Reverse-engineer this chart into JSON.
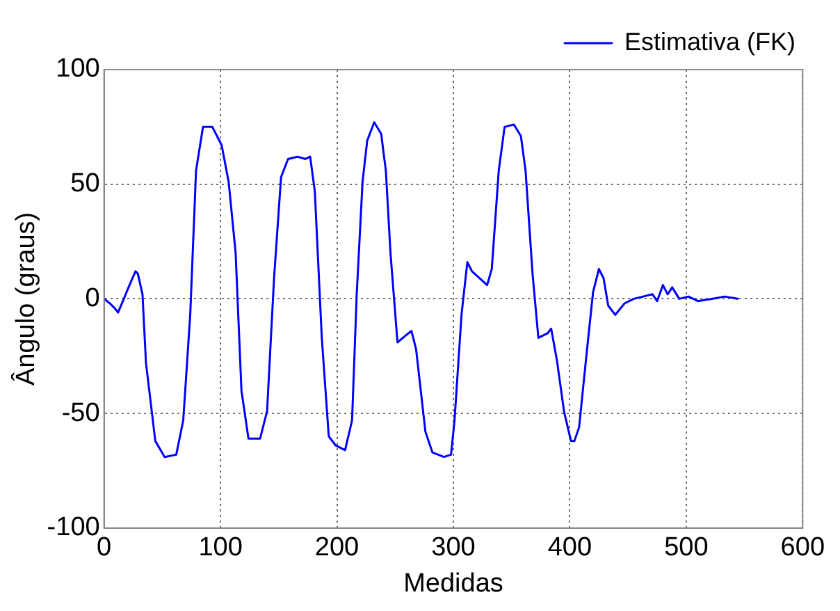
{
  "chart_data": {
    "type": "line",
    "xlabel": "Medidas",
    "ylabel": "Ângulo (graus)",
    "xlim": [
      0,
      600
    ],
    "ylim": [
      -100,
      100
    ],
    "xticks": [
      0,
      100,
      200,
      300,
      400,
      500,
      600
    ],
    "yticks": [
      -100,
      -50,
      0,
      50,
      100
    ],
    "grid": true,
    "line_style": "solid",
    "marker": "none",
    "legend": "top right",
    "series": [
      {
        "name": "Estimativa (FK)",
        "color": "#0000ff",
        "x": [
          0,
          5,
          9,
          12,
          17,
          21,
          27,
          29,
          33,
          36,
          44,
          52,
          62,
          68,
          74,
          79,
          85,
          93,
          101,
          107,
          113,
          118,
          124,
          134,
          140,
          146,
          152,
          158,
          166,
          173,
          177,
          181,
          187,
          193,
          199,
          207,
          213,
          217,
          222,
          226,
          232,
          238,
          242,
          246,
          252,
          259,
          264,
          268,
          276,
          282,
          292,
          298,
          301,
          307,
          312,
          316,
          329,
          333,
          339,
          344,
          352,
          358,
          362,
          368,
          373,
          381,
          384,
          389,
          395,
          401,
          404,
          408,
          414,
          420,
          425,
          429,
          433,
          439,
          447,
          455,
          463,
          471,
          475,
          480,
          484,
          488,
          494,
          502,
          510,
          522,
          533,
          545
        ],
        "values": [
          0,
          -2,
          -4,
          -6,
          0,
          5,
          12,
          11,
          2,
          -28,
          -62,
          -69,
          -68,
          -53,
          -7,
          56,
          75,
          75,
          67,
          51,
          20,
          -40,
          -61,
          -61,
          -49,
          9,
          53,
          61,
          62,
          61,
          62,
          47,
          -17,
          -60,
          -64,
          -66,
          -53,
          2,
          51,
          69,
          77,
          72,
          56,
          20,
          -19,
          -16,
          -14,
          -22,
          -58,
          -67,
          -69,
          -68,
          -53,
          -7,
          16,
          12,
          6,
          13,
          56,
          75,
          76,
          71,
          56,
          11,
          -17,
          -15,
          -13,
          -27,
          -49,
          -62,
          -62,
          -56,
          -26,
          3,
          13,
          9,
          -3,
          -7,
          -2,
          0,
          1,
          2,
          -1,
          6,
          2,
          5,
          0,
          1,
          -1,
          0,
          1,
          0
        ]
      }
    ]
  }
}
